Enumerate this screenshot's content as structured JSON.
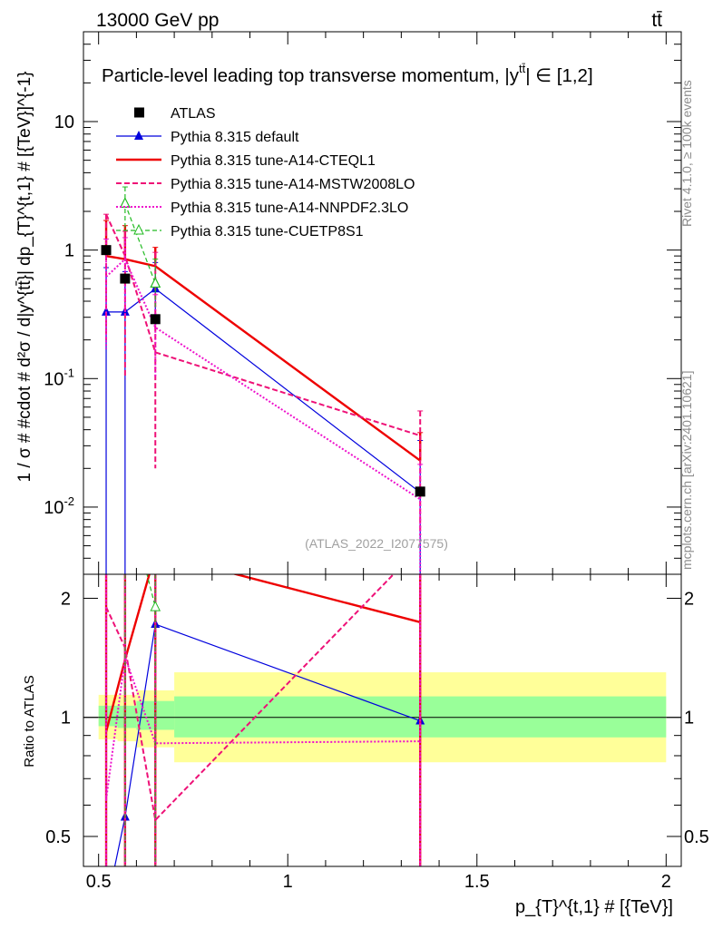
{
  "header": {
    "energy_label": "13000 GeV pp",
    "process_label": "tt̄"
  },
  "side_labels": {
    "rivet": "Rivet 4.1.0, ≥ 100k events",
    "mcplots": "mcplots.cern.ch [arXiv:2401.10621]"
  },
  "colors": {
    "data": "#000000",
    "default": "#0000dd",
    "cteql1": "#ee0000",
    "mstw": "#ee1177",
    "nnpdf": "#ee11cc",
    "cuetp8s1": "#22bb22",
    "band_stat": "#99ff99",
    "band_tot": "#ffff99"
  },
  "chart_data": [
    {
      "type": "line",
      "panel": "main",
      "title": "Particle-level leading top transverse momentum, |y^{tt̄}| ∈ [1,2]",
      "title_text": "Particle-level leading top transverse momentum, |y",
      "title_sup": "tt̄",
      "title_tail": "| ∈ [1,2]",
      "watermark": "(ATLAS_2022_I2077575)",
      "xlabel": "p_{T}^{t,1} # [{TeV}]",
      "ylabel": "1 / σ # #cdot # d²σ / d|y^{tt̄}| dp_{T}^{t,1} # [{TeV}]^{-1}",
      "y_scale": "log",
      "ylim": [
        0.003,
        50
      ],
      "xlim": [
        0.46,
        2.04
      ],
      "x_ticks": [
        "0.5",
        "1",
        "1.5",
        "2"
      ],
      "y_ticks": [
        "10^-2",
        "10^-1",
        "1",
        "10"
      ],
      "legend_position": "top-left",
      "bins": [
        [
          0.5,
          0.55
        ],
        [
          0.55,
          0.6
        ],
        [
          0.6,
          0.7
        ],
        [
          0.7,
          2.0
        ]
      ],
      "x": [
        0.52,
        0.57,
        0.65,
        1.35
      ],
      "series": [
        {
          "name": "ATLAS",
          "key": "data",
          "style": "marker",
          "values": [
            1.0,
            0.6,
            0.29,
            0.0132
          ],
          "err": [
            0.0,
            0.0,
            0.0,
            0.0
          ]
        },
        {
          "name": "Pythia 8.315 default",
          "key": "default",
          "style": "solid-thin",
          "marker": "triangle",
          "values": [
            0.33,
            0.33,
            0.5,
            0.013
          ],
          "err_lo": [
            0.33,
            0.33,
            0.2,
            0.013
          ],
          "err_hi": [
            0.4,
            0.35,
            0.3,
            0.02
          ]
        },
        {
          "name": "Pythia 8.315 tune-A14-CTEQL1",
          "key": "cteql1",
          "style": "solid-thick",
          "values": [
            0.9,
            0.85,
            0.75,
            0.023
          ],
          "err_hi": [
            0.8,
            0.7,
            0.3,
            0.015
          ]
        },
        {
          "name": "Pythia 8.315 tune-A14-MSTW2008LO",
          "key": "mstw",
          "style": "dashed",
          "values": [
            1.9,
            0.9,
            0.16,
            0.036
          ],
          "err_lo": [
            1.7,
            0.8,
            0.14,
            0.03
          ],
          "err_hi": [
            0.0,
            0.5,
            0.8,
            0.02
          ]
        },
        {
          "name": "Pythia 8.315 tune-A14-NNPDF2.3LO",
          "key": "nnpdf",
          "style": "dotted",
          "values": [
            0.62,
            0.85,
            0.25,
            0.0115
          ],
          "err_lo": [
            0.45,
            0.55,
            0.15,
            0.01
          ],
          "err_hi": [
            0.6,
            0.4,
            0.2,
            0.01
          ]
        },
        {
          "name": "Pythia 8.315 tune-CUETP8S1",
          "key": "cuetp8s1",
          "style": "dashed-thin",
          "marker": "open-triangle",
          "values": [
            null,
            2.3,
            0.55,
            null
          ],
          "err_lo": [
            0,
            0.8,
            0.2,
            0
          ],
          "err_hi": [
            0,
            0.8,
            0.3,
            0
          ]
        }
      ]
    },
    {
      "type": "line",
      "panel": "ratio",
      "ylabel": "Ratio to ATLAS",
      "ylim": [
        0.42,
        2.3
      ],
      "y_ticks": [
        "0.5",
        "1",
        "2"
      ],
      "reference": 1.0,
      "bands": [
        {
          "x0": 0.5,
          "x1": 0.55,
          "stat": [
            0.95,
            1.07
          ],
          "tot": [
            0.88,
            1.14
          ]
        },
        {
          "x0": 0.55,
          "x1": 0.6,
          "stat": [
            0.94,
            1.07
          ],
          "tot": [
            0.87,
            1.14
          ]
        },
        {
          "x0": 0.6,
          "x1": 0.7,
          "stat": [
            0.93,
            1.1
          ],
          "tot": [
            0.84,
            1.17
          ]
        },
        {
          "x0": 0.7,
          "x1": 2.0,
          "stat": [
            0.89,
            1.13
          ],
          "tot": [
            0.77,
            1.3
          ]
        }
      ],
      "series": [
        {
          "key": "default",
          "x": [
            0.52,
            0.57,
            0.65,
            1.35
          ],
          "values": [
            0.33,
            0.56,
            1.72,
            0.98
          ]
        },
        {
          "key": "cteql1",
          "x": [
            0.52,
            0.57,
            0.65,
            1.35
          ],
          "values": [
            0.92,
            1.4,
            2.6,
            1.74
          ]
        },
        {
          "key": "mstw",
          "x": [
            0.52,
            0.57,
            0.65,
            1.35
          ],
          "values": [
            1.9,
            1.5,
            0.55,
            2.7
          ]
        },
        {
          "key": "nnpdf",
          "x": [
            0.52,
            0.57,
            0.65,
            1.35
          ],
          "values": [
            0.62,
            1.42,
            0.86,
            0.87
          ]
        },
        {
          "key": "cuetp8s1",
          "x": [
            0.57,
            0.65
          ],
          "values": [
            3.8,
            1.9
          ]
        }
      ]
    }
  ]
}
